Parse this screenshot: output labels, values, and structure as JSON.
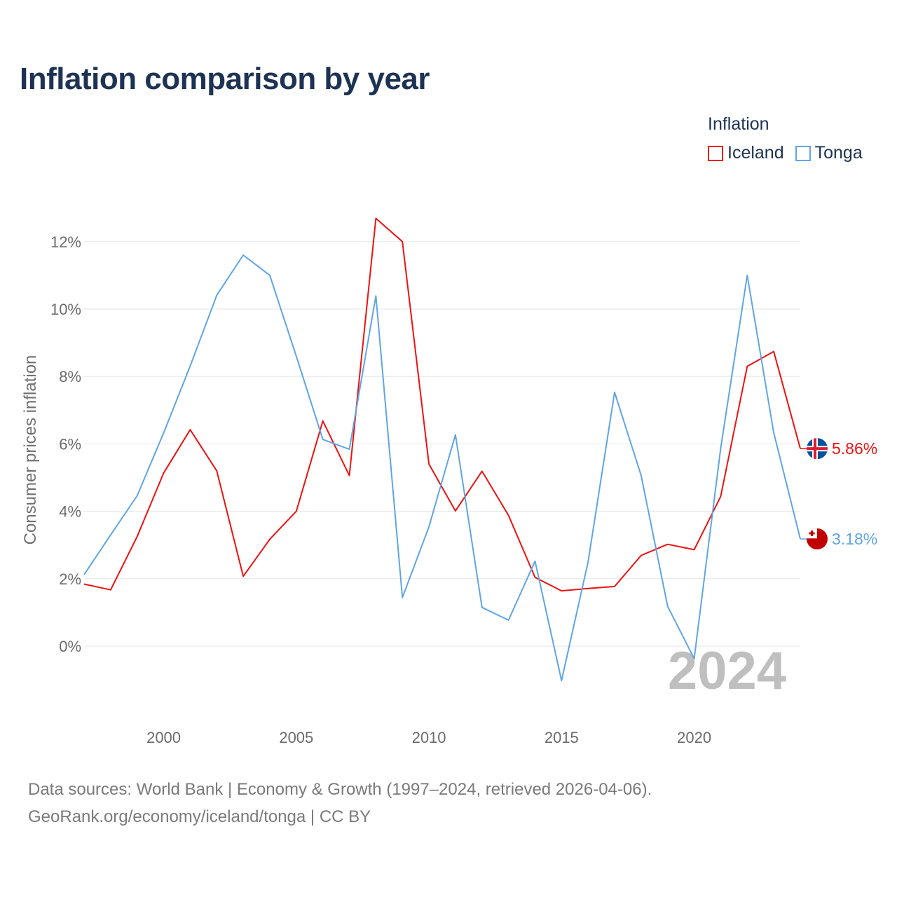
{
  "title": "Inflation comparison by year",
  "legend": {
    "title": "Inflation",
    "items": [
      {
        "name": "Iceland",
        "color": "#ee1111"
      },
      {
        "name": "Tonga",
        "color": "#5fa5e6"
      }
    ]
  },
  "footer": {
    "line1": "Data sources: World Bank | Economy & Growth (1997–2024, retrieved 2026-04-06).",
    "line2": "GeoRank.org/economy/iceland/tonga | CC BY"
  },
  "chart_data": {
    "type": "line",
    "title": "Inflation comparison by year",
    "xlabel": "",
    "ylabel": "Consumer prices inflation",
    "x": [
      1997,
      1998,
      1999,
      2000,
      2001,
      2002,
      2003,
      2004,
      2005,
      2006,
      2007,
      2008,
      2009,
      2010,
      2011,
      2012,
      2013,
      2014,
      2015,
      2016,
      2017,
      2018,
      2019,
      2020,
      2021,
      2022,
      2023,
      2024
    ],
    "xlim": [
      1997,
      2024
    ],
    "ylim": [
      -2,
      13
    ],
    "xticks": [
      2000,
      2005,
      2010,
      2015,
      2020
    ],
    "xtick_labels": [
      "2000",
      "2005",
      "2010",
      "2015",
      "2020"
    ],
    "yticks": [
      0,
      2,
      4,
      6,
      8,
      10,
      12
    ],
    "ytick_labels": [
      "0%",
      "2%",
      "4%",
      "6%",
      "8%",
      "10%",
      "12%"
    ],
    "grid": true,
    "year_watermark": "2024",
    "series": [
      {
        "name": "Iceland",
        "color": "#ee1111",
        "end_label": "5.86%",
        "flag_icon": "iceland-flag-icon",
        "values": [
          1.84,
          1.67,
          3.25,
          5.14,
          6.42,
          5.2,
          2.07,
          3.17,
          4.0,
          6.68,
          5.06,
          12.69,
          12.0,
          5.4,
          4.01,
          5.19,
          3.88,
          2.04,
          1.64,
          1.71,
          1.77,
          2.69,
          3.02,
          2.86,
          4.44,
          8.3,
          8.74,
          5.86
        ]
      },
      {
        "name": "Tonga",
        "color": "#5fa5e6",
        "end_label": "3.18%",
        "flag_icon": "tonga-flag-icon",
        "values": [
          2.12,
          3.3,
          4.46,
          6.33,
          8.31,
          10.41,
          11.6,
          11.0,
          8.6,
          6.13,
          5.84,
          10.39,
          1.44,
          3.54,
          6.27,
          1.15,
          0.77,
          2.52,
          -1.02,
          2.5,
          7.53,
          5.06,
          1.18,
          -0.37,
          5.87,
          11.0,
          6.33,
          3.18
        ]
      }
    ]
  }
}
